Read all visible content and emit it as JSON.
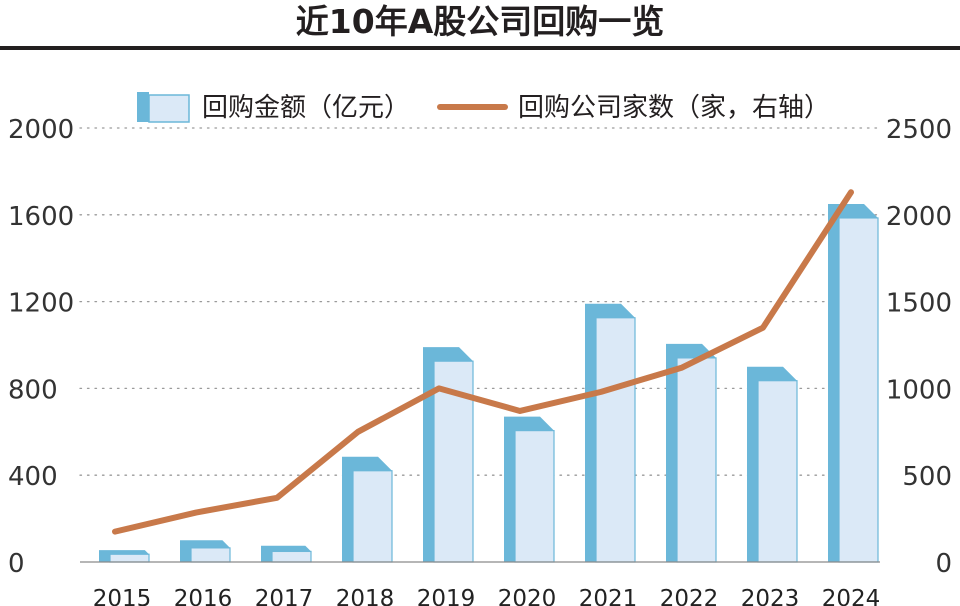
{
  "title": "近10年A股公司回购一览",
  "chart_data": {
    "type": "bar",
    "categories": [
      "2015",
      "2016",
      "2017",
      "2018",
      "2019",
      "2020",
      "2021",
      "2022",
      "2023",
      "2024"
    ],
    "series": [
      {
        "name": "回购金额（亿元）",
        "type": "bar",
        "axis": "left",
        "values": [
          55,
          100,
          75,
          485,
          990,
          670,
          1190,
          1005,
          900,
          1650
        ]
      },
      {
        "name": "回购公司家数（家，右轴）",
        "type": "line",
        "axis": "right",
        "values": [
          175,
          285,
          370,
          750,
          1000,
          870,
          980,
          1120,
          1350,
          2130
        ]
      }
    ],
    "ylim_left": [
      0,
      2000
    ],
    "ylim_right": [
      0,
      2500
    ],
    "yticks_left": [
      "0",
      "400",
      "800",
      "1200",
      "1600",
      "2000"
    ],
    "yticks_right": [
      "0",
      "500",
      "1000",
      "1500",
      "2000",
      "2500"
    ],
    "grid": true,
    "legend": "top",
    "colors": {
      "bar_front": "#dbe9f7",
      "bar_side": "#6bb7d9",
      "line": "#c8794a"
    }
  }
}
